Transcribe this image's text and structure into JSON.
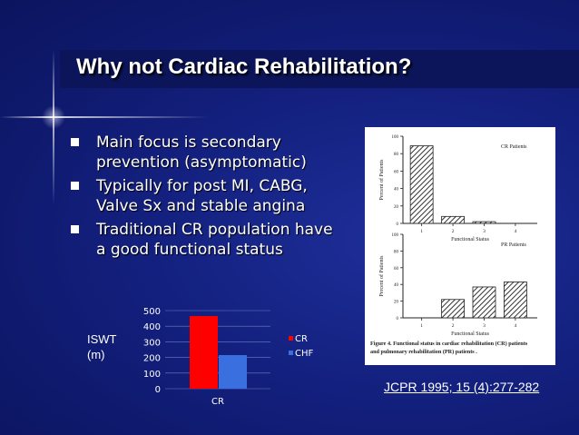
{
  "slide": {
    "title": "Why not Cardiac Rehabilitation?",
    "bullets": [
      "Main focus is secondary prevention (asymptomatic)",
      "Typically for post MI, CABG, Valve Sx and stable angina",
      "Traditional CR population have a good functional status"
    ],
    "citation": "JCPR 1995; 15 (4):277-282"
  },
  "colors": {
    "cr": "#ff0000",
    "chf": "#3a6fe0",
    "title_bar": "#0c1559"
  },
  "chart_data": [
    {
      "type": "bar",
      "title": "",
      "ylabel": "ISWT (m)",
      "ylabel_lines": [
        "ISWT",
        "(m)"
      ],
      "categories": [
        "CR"
      ],
      "series": [
        {
          "name": "CR",
          "values": [
            465
          ]
        },
        {
          "name": "CHF",
          "values": [
            215
          ]
        }
      ],
      "ylim": [
        0,
        500
      ],
      "yticks": [
        "0",
        "100",
        "200",
        "300",
        "400",
        "500"
      ],
      "grid": true,
      "legend": "right"
    },
    {
      "type": "bar",
      "title": "",
      "subtitle": "CR Patients",
      "ylabel": "Percent of Patients",
      "xlabel": "Functional Status",
      "categories": [
        "1",
        "2",
        "3",
        "4"
      ],
      "values": [
        89,
        8,
        2,
        0
      ],
      "ylim": [
        0,
        100
      ],
      "yticks": [
        "0",
        "20",
        "40",
        "60",
        "80",
        "100"
      ]
    },
    {
      "type": "bar",
      "title": "",
      "subtitle": "PR Patients",
      "ylabel": "Percent of Patients",
      "xlabel": "Functional Status",
      "categories": [
        "1",
        "2",
        "3",
        "4"
      ],
      "values": [
        0,
        22,
        37,
        43
      ],
      "ylim": [
        0,
        100
      ],
      "yticks": [
        "0",
        "20",
        "40",
        "60",
        "80",
        "100"
      ],
      "caption": "Figure 4. Functional status in cardiac rehabilitation (CR) patients and pulmonary rehabilitation (PR) patients ."
    }
  ]
}
